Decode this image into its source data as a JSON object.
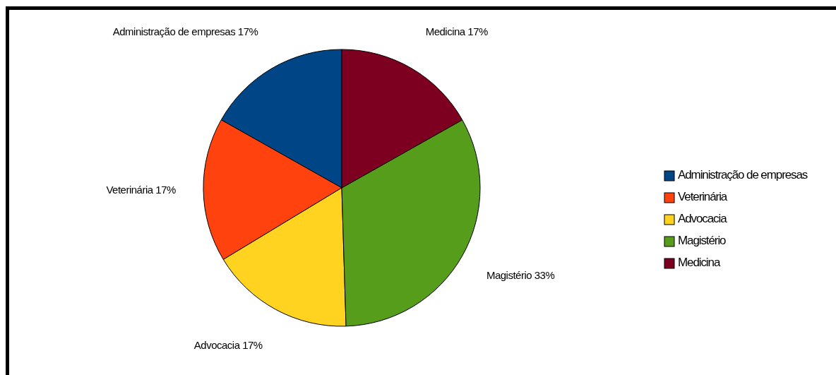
{
  "chart_data": {
    "type": "pie",
    "categories": [
      "Administração de empresas",
      "Veterinária",
      "Advocacia",
      "Magistério",
      "Medicina"
    ],
    "values": [
      17,
      17,
      17,
      33,
      17
    ],
    "colors": [
      "#004586",
      "#ff420e",
      "#ffd320",
      "#579d1c",
      "#7e0021"
    ],
    "value_labels": [
      "17%",
      "17%",
      "17%",
      "33%",
      "17%"
    ],
    "legend": "right"
  }
}
